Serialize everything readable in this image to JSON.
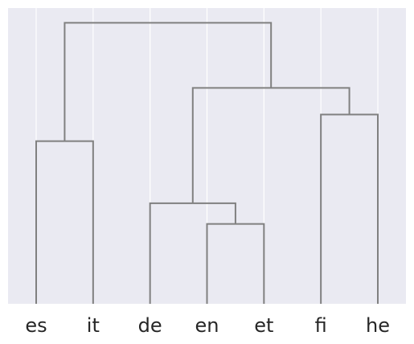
{
  "chart_data": {
    "type": "dendrogram",
    "leaves": [
      "es",
      "it",
      "de",
      "en",
      "et",
      "fi",
      "he"
    ],
    "links": [
      {
        "left": 0,
        "right": 1,
        "height": 0.55
      },
      {
        "left": 3,
        "right": 4,
        "height": 0.27
      },
      {
        "left": 2,
        "right": "n1",
        "height": 0.34
      },
      {
        "left": 5,
        "right": 6,
        "height": 0.64
      },
      {
        "left": "n2",
        "right": "n3",
        "height": 0.73
      },
      {
        "left": "n0",
        "right": "n4",
        "height": 0.95
      }
    ],
    "ylim": [
      0,
      1.0
    ],
    "grid": "vertical",
    "colors": {
      "background": "#eaeaf2",
      "grid": "#ffffff",
      "link": "#808080",
      "text": "#262626"
    }
  }
}
